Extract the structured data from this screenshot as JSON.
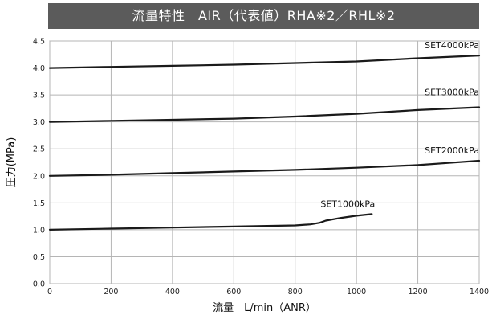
{
  "chart_data": {
    "type": "line",
    "title": "流量特性　AIR（代表値）RHA※2／RHL※2",
    "xlabel": "流量　L/min（ANR）",
    "ylabel": "圧力(MPa)",
    "xlim": [
      0,
      1400
    ],
    "ylim": [
      0,
      4.5
    ],
    "xticks": [
      "0",
      "200",
      "400",
      "600",
      "800",
      "1000",
      "1200",
      "1400"
    ],
    "yticks": [
      "0.0",
      "0.5",
      "1.0",
      "1.5",
      "2.0",
      "2.5",
      "3.0",
      "3.5",
      "4.0",
      "4.5"
    ],
    "grid": true,
    "series": [
      {
        "name": "SET1000kPa",
        "x": [
          0,
          200,
          400,
          600,
          800,
          850,
          880,
          900,
          950,
          1000,
          1050
        ],
        "y": [
          1.0,
          1.02,
          1.04,
          1.06,
          1.08,
          1.1,
          1.13,
          1.17,
          1.22,
          1.26,
          1.29
        ]
      },
      {
        "name": "SET2000kPa",
        "x": [
          0,
          200,
          400,
          600,
          800,
          1000,
          1200,
          1300,
          1400
        ],
        "y": [
          2.0,
          2.02,
          2.05,
          2.08,
          2.11,
          2.15,
          2.2,
          2.24,
          2.28
        ]
      },
      {
        "name": "SET3000kPa",
        "x": [
          0,
          200,
          400,
          600,
          800,
          1000,
          1200,
          1400
        ],
        "y": [
          3.0,
          3.02,
          3.04,
          3.06,
          3.1,
          3.15,
          3.22,
          3.27
        ]
      },
      {
        "name": "SET4000kPa",
        "x": [
          0,
          200,
          400,
          600,
          800,
          1000,
          1200,
          1400
        ],
        "y": [
          4.0,
          4.02,
          4.04,
          4.06,
          4.09,
          4.12,
          4.18,
          4.23
        ]
      }
    ]
  }
}
